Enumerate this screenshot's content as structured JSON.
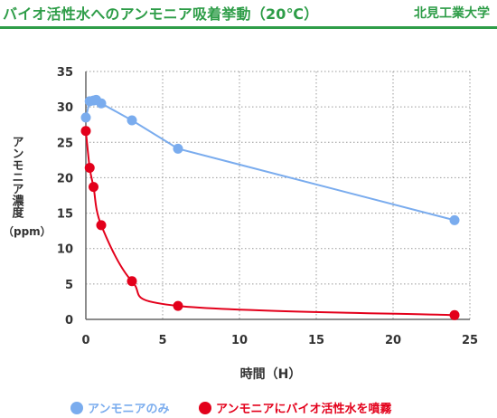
{
  "header": {
    "title": "バイオ活性水へのアンモニア吸着挙動（20℃）",
    "org": "北見工業大学",
    "accent": "#2e9d48"
  },
  "chart_data": {
    "type": "scatter",
    "xlabel": "時間（H）",
    "ylabel_main": "アンモニア濃度",
    "ylabel_unit": "（ppm）",
    "xlim": [
      0,
      25
    ],
    "ylim": [
      0,
      35
    ],
    "x_ticks": [
      "0",
      "5",
      "10",
      "15",
      "20",
      "25"
    ],
    "y_ticks": [
      "0",
      "5",
      "10",
      "15",
      "20",
      "25",
      "30",
      "35"
    ],
    "grid": true,
    "legend_position": "bottom",
    "series": [
      {
        "name": "アンモニアのみ",
        "color": "#7aacee",
        "line": "straight",
        "x": [
          0.0,
          0.25,
          0.5,
          0.67,
          1.0,
          3.0,
          6.0,
          24.0
        ],
        "y": [
          28.5,
          30.8,
          30.9,
          31.0,
          30.5,
          28.1,
          24.1,
          14.0
        ]
      },
      {
        "name": "アンモニアにバイオ活性水を噴霧",
        "color": "#e3001b",
        "line": "smooth",
        "x": [
          0.0,
          0.25,
          0.5,
          1.0,
          3.0,
          6.0,
          24.0
        ],
        "y": [
          26.6,
          21.4,
          18.7,
          13.3,
          5.4,
          1.9,
          0.6
        ]
      }
    ]
  }
}
